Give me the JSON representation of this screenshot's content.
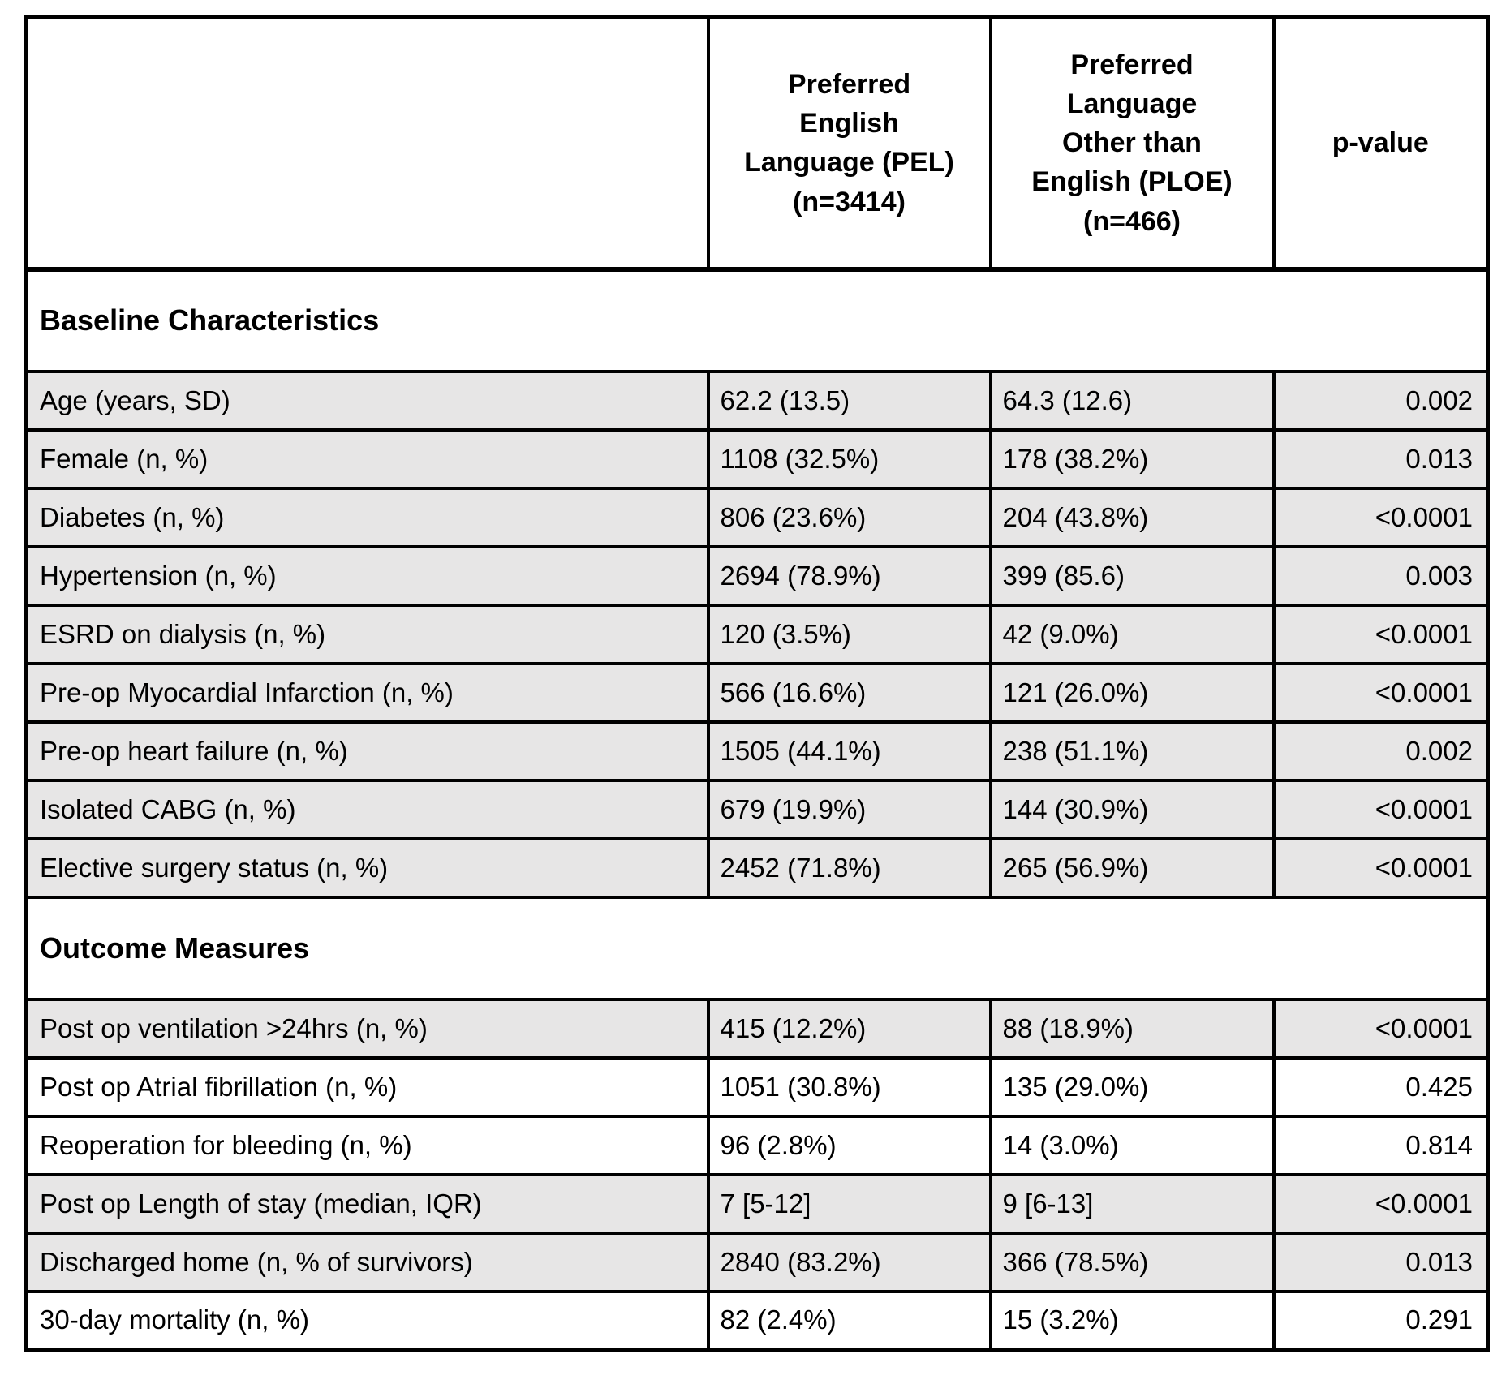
{
  "table": {
    "columns": {
      "col1_header": "",
      "col2_header": "Preferred\nEnglish\nLanguage (PEL)\n(n=3414)",
      "col3_header": "Preferred\nLanguage\nOther than\nEnglish (PLOE)\n(n=466)",
      "col4_header": "p-value"
    },
    "colors": {
      "row_shade": "#e7e6e6",
      "border": "#000000",
      "background": "#ffffff"
    },
    "sections": [
      {
        "heading": "Baseline Characteristics",
        "rows": [
          {
            "label": "Age (years, SD)",
            "pel": "62.2 (13.5)",
            "ploe": "64.3 (12.6)",
            "p": "0.002",
            "shaded": true
          },
          {
            "label": "Female (n, %)",
            "pel": "1108 (32.5%)",
            "ploe": "178 (38.2%)",
            "p": "0.013",
            "shaded": true
          },
          {
            "label": "Diabetes (n, %)",
            "pel": "806 (23.6%)",
            "ploe": "204 (43.8%)",
            "p": "<0.0001",
            "shaded": true
          },
          {
            "label": "Hypertension (n, %)",
            "pel": "2694 (78.9%)",
            "ploe": "399 (85.6)",
            "p": "0.003",
            "shaded": true
          },
          {
            "label": "ESRD on dialysis (n, %)",
            "pel": "120 (3.5%)",
            "ploe": "42 (9.0%)",
            "p": "<0.0001",
            "shaded": true
          },
          {
            "label": "Pre-op Myocardial Infarction (n, %)",
            "pel": "566 (16.6%)",
            "ploe": "121 (26.0%)",
            "p": "<0.0001",
            "shaded": true
          },
          {
            "label": "Pre-op heart failure (n, %)",
            "pel": "1505 (44.1%)",
            "ploe": "238 (51.1%)",
            "p": "0.002",
            "shaded": true
          },
          {
            "label": "Isolated CABG (n, %)",
            "pel": "679 (19.9%)",
            "ploe": "144 (30.9%)",
            "p": "<0.0001",
            "shaded": true
          },
          {
            "label": "Elective surgery status (n, %)",
            "pel": "2452 (71.8%)",
            "ploe": "265 (56.9%)",
            "p": "<0.0001",
            "shaded": true
          }
        ]
      },
      {
        "heading": "Outcome Measures",
        "rows": [
          {
            "label": "Post op ventilation >24hrs (n, %)",
            "pel": "415 (12.2%)",
            "ploe": "88 (18.9%)",
            "p": "<0.0001",
            "shaded": true
          },
          {
            "label": "Post op Atrial fibrillation (n, %)",
            "pel": "1051 (30.8%)",
            "ploe": "135 (29.0%)",
            "p": "0.425",
            "shaded": false
          },
          {
            "label": "Reoperation for bleeding (n, %)",
            "pel": "96 (2.8%)",
            "ploe": "14 (3.0%)",
            "p": "0.814",
            "shaded": false
          },
          {
            "label": "Post op Length of stay (median, IQR)",
            "pel": "7 [5-12]",
            "ploe": "9 [6-13]",
            "p": "<0.0001",
            "shaded": true
          },
          {
            "label": "Discharged home (n, % of survivors)",
            "pel": "2840 (83.2%)",
            "ploe": "366 (78.5%)",
            "p": "0.013",
            "shaded": true
          },
          {
            "label": "30-day mortality (n, %)",
            "pel": "82 (2.4%)",
            "ploe": "15 (3.2%)",
            "p": "0.291",
            "shaded": false
          }
        ]
      }
    ]
  }
}
